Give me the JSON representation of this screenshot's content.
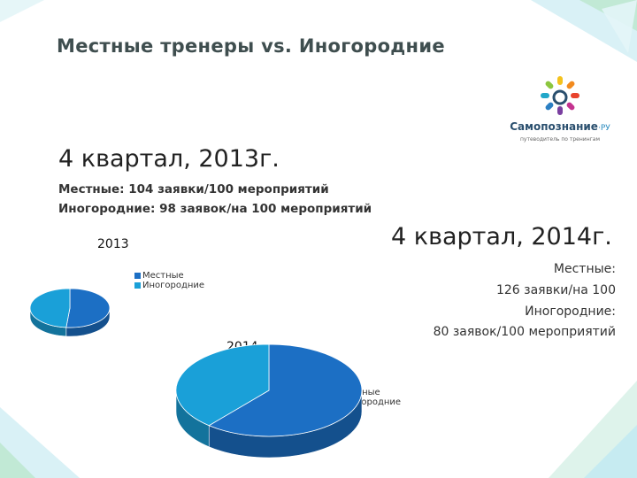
{
  "title": "Местные тренеры  vs. Иногородние",
  "logo": {
    "name": "Самопознание",
    "suffix": "·РУ",
    "tagline": "путеводитель по тренингам"
  },
  "q4_2013": {
    "heading": "4 квартал, 2013г.",
    "local_line": "Местные: 104 заявки/100 мероприятий",
    "visiting_line": "Иногородние: 98 заявок/на 100 мероприятий"
  },
  "q4_2014": {
    "heading": "4 квартал, 2014г.",
    "local_label": "Местные:",
    "local_value": "126 заявки/на 100",
    "visiting_label": "Иногородние:",
    "visiting_value": "80 заявок/100 мероприятий"
  },
  "colors": {
    "local": "#1c6fc4",
    "visiting": "#1aa0d8",
    "title": "#3f4e4f"
  },
  "chart_data": [
    {
      "type": "pie",
      "title": "2013",
      "categories": [
        "Местные",
        "Иногородние"
      ],
      "values": [
        104,
        98
      ],
      "colors": [
        "#1c6fc4",
        "#1aa0d8"
      ],
      "style": "3d",
      "legend": "right"
    },
    {
      "type": "pie",
      "title": "2014",
      "categories": [
        "Местные",
        "Иногородние"
      ],
      "values": [
        126,
        80
      ],
      "colors": [
        "#1c6fc4",
        "#1aa0d8"
      ],
      "style": "3d",
      "legend": "right"
    }
  ]
}
